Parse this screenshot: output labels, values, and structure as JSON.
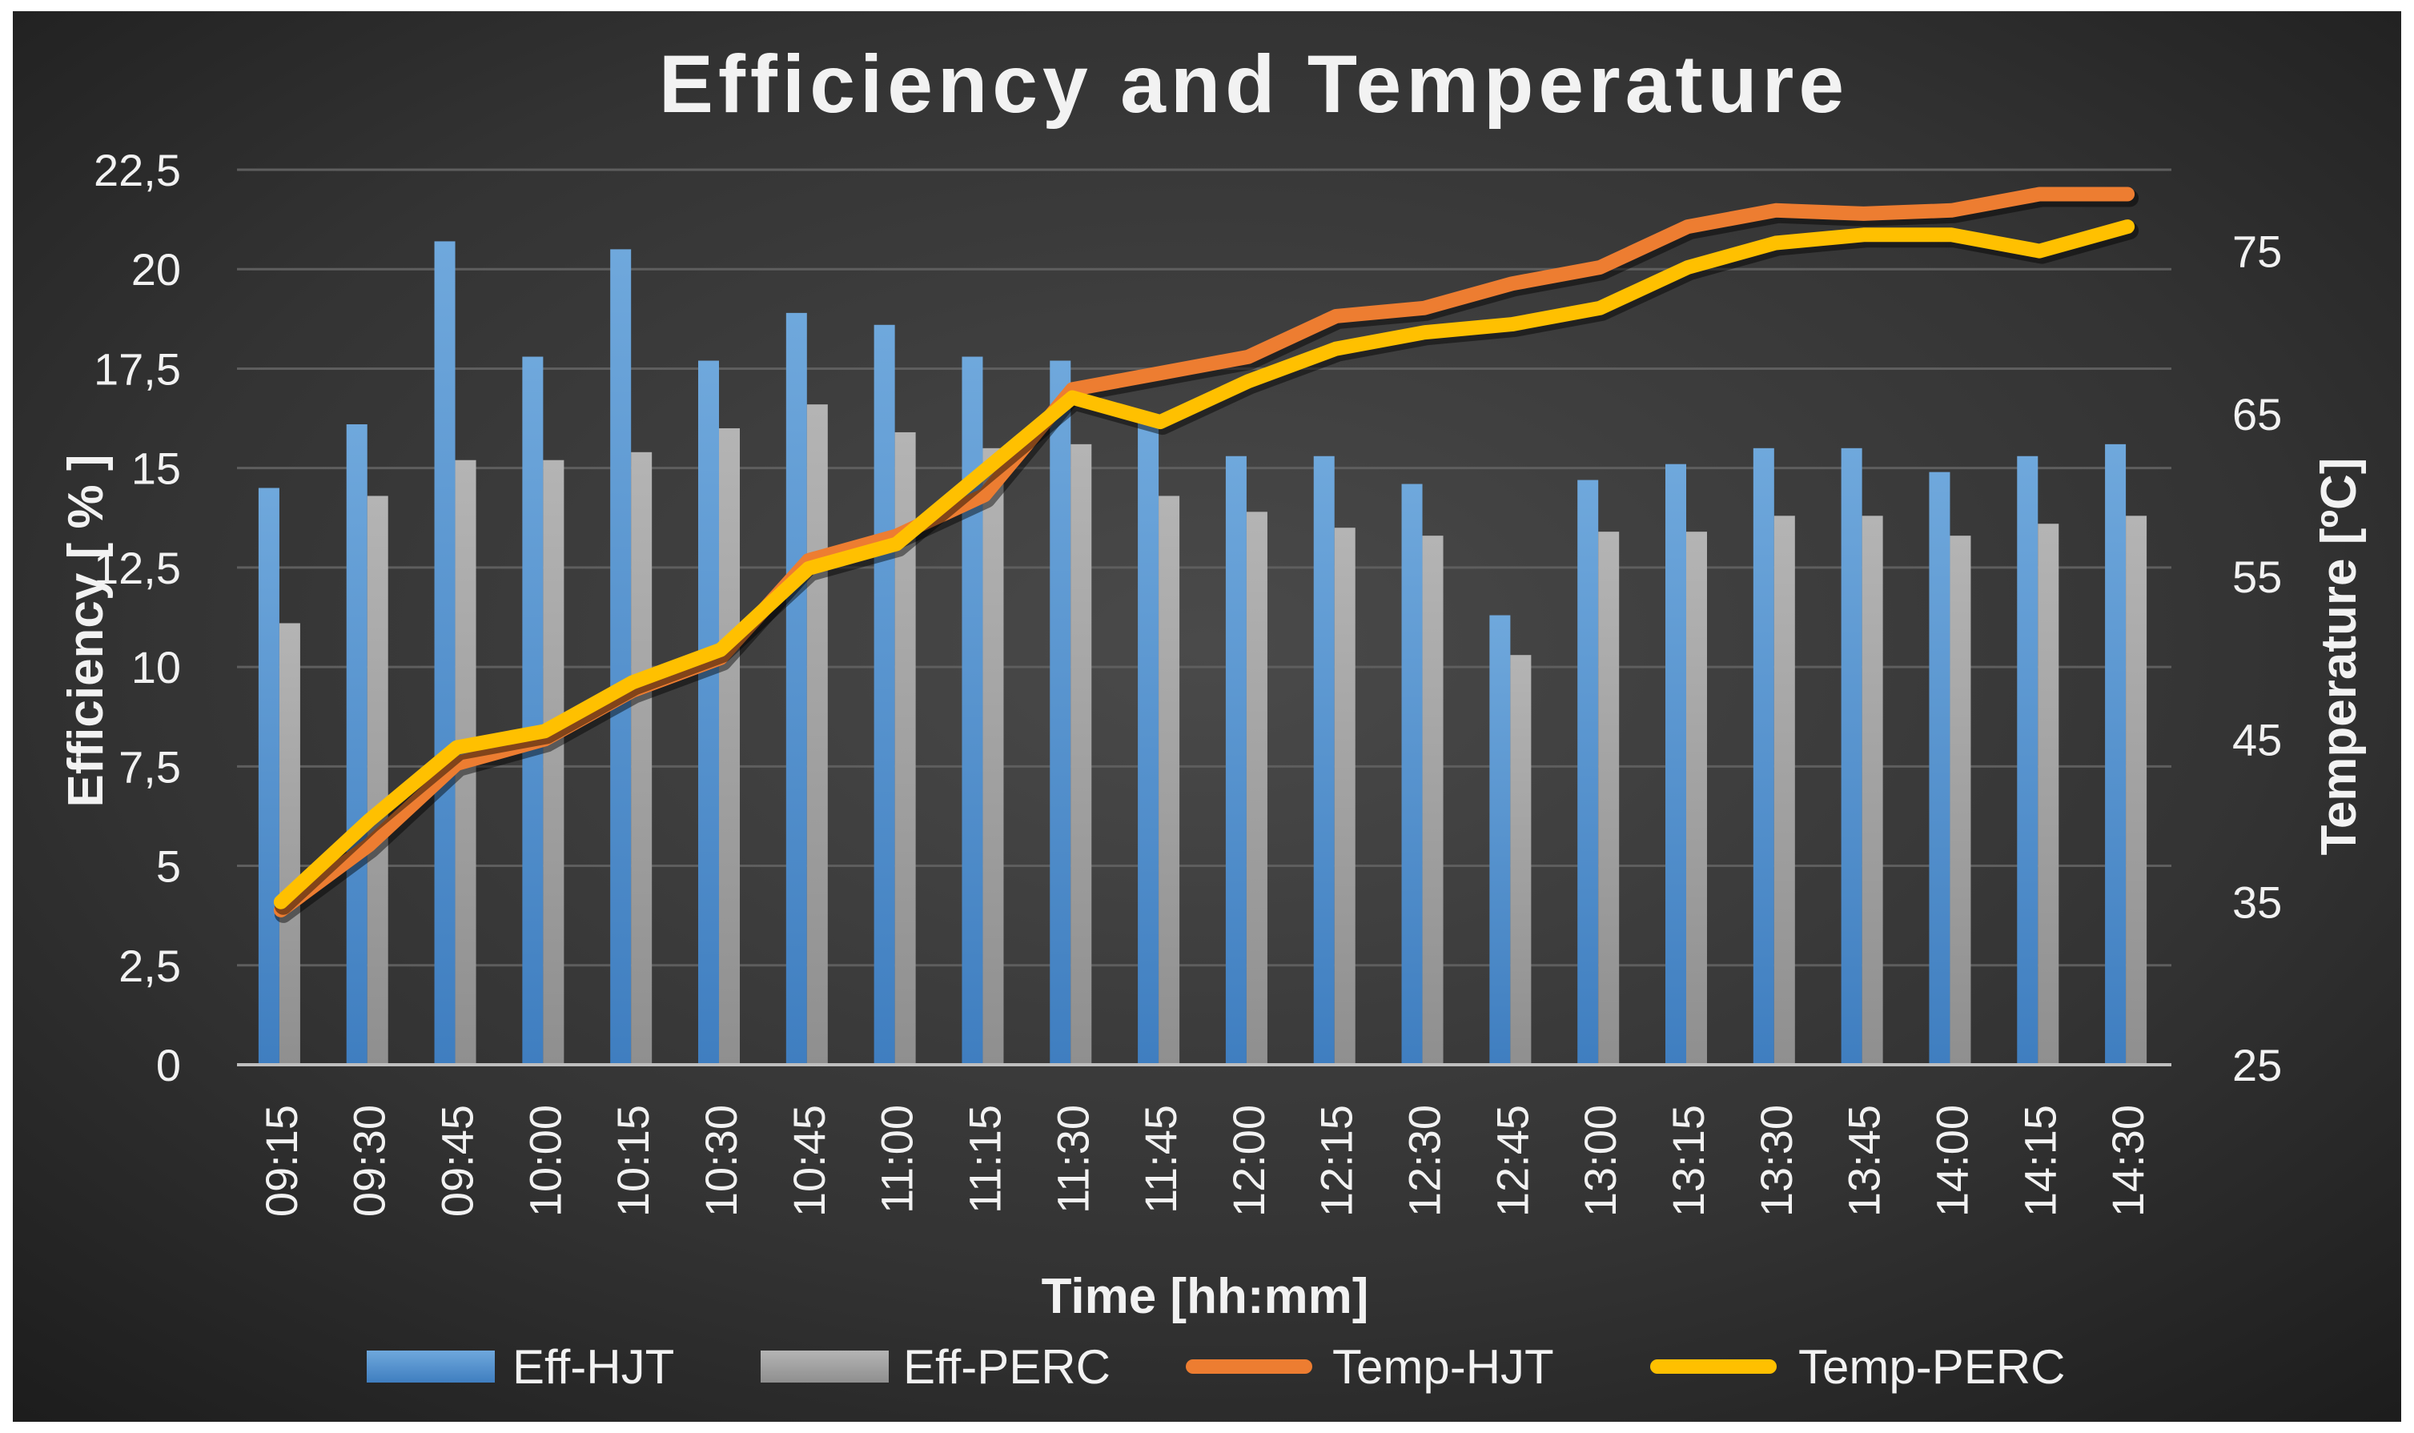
{
  "chart_data": {
    "type": "bar+line",
    "title": "Efficiency and Temperature",
    "xlabel": "Time [hh:mm]",
    "ylabel": "Efficiency [ % ]",
    "y2label": "Temperature [ºC]",
    "ylim": [
      0,
      22.5
    ],
    "y2lim": [
      25,
      80
    ],
    "yticks": [
      "0",
      "2,5",
      "5",
      "7,5",
      "10",
      "12,5",
      "15",
      "17,5",
      "20",
      "22,5"
    ],
    "y2ticks": [
      "25",
      "35",
      "45",
      "55",
      "65",
      "75"
    ],
    "categories": [
      "09:15",
      "09:30",
      "09:45",
      "10:00",
      "10:15",
      "10:30",
      "10:45",
      "11:00",
      "11:15",
      "11:30",
      "11:45",
      "12:00",
      "12:15",
      "12:30",
      "12:45",
      "13:00",
      "13:15",
      "13:30",
      "13:45",
      "14:00",
      "14:15",
      "14:30"
    ],
    "bar_series": [
      {
        "name": "Eff-HJT",
        "color": "#5b9bd5",
        "values": [
          14.5,
          16.1,
          20.7,
          17.8,
          20.5,
          17.7,
          18.9,
          18.6,
          17.8,
          17.7,
          16.2,
          15.3,
          15.3,
          14.6,
          11.3,
          14.7,
          15.1,
          15.5,
          15.5,
          14.9,
          15.3,
          15.6
        ]
      },
      {
        "name": "Eff-PERC",
        "color": "#a5a5a5",
        "values": [
          11.1,
          14.3,
          15.2,
          15.2,
          15.4,
          16.0,
          16.6,
          15.9,
          15.5,
          15.6,
          14.3,
          13.9,
          13.5,
          13.3,
          10.3,
          13.4,
          13.4,
          13.8,
          13.8,
          13.3,
          13.6,
          13.8
        ]
      }
    ],
    "line_series": [
      {
        "name": "Temp-HJT",
        "color": "#ed7d31",
        "values": [
          34.5,
          38.5,
          43.5,
          45.0,
          48.0,
          50.0,
          56.0,
          57.5,
          60.0,
          66.5,
          67.5,
          68.5,
          71.0,
          71.5,
          73.0,
          74.0,
          76.5,
          77.5,
          77.3,
          77.5,
          78.5,
          78.5
        ]
      },
      {
        "name": "Temp-PERC",
        "color": "#ffc000",
        "values": [
          35.0,
          40.0,
          44.5,
          45.5,
          48.5,
          50.5,
          55.5,
          57.0,
          61.5,
          66.0,
          64.5,
          67.0,
          69.0,
          70.0,
          70.5,
          71.5,
          74.0,
          75.5,
          76.0,
          76.0,
          75.0,
          76.5
        ]
      }
    ],
    "legend": [
      "Eff-HJT",
      "Eff-PERC",
      "Temp-HJT",
      "Temp-PERC"
    ],
    "legend_position": "bottom",
    "grid": true
  }
}
